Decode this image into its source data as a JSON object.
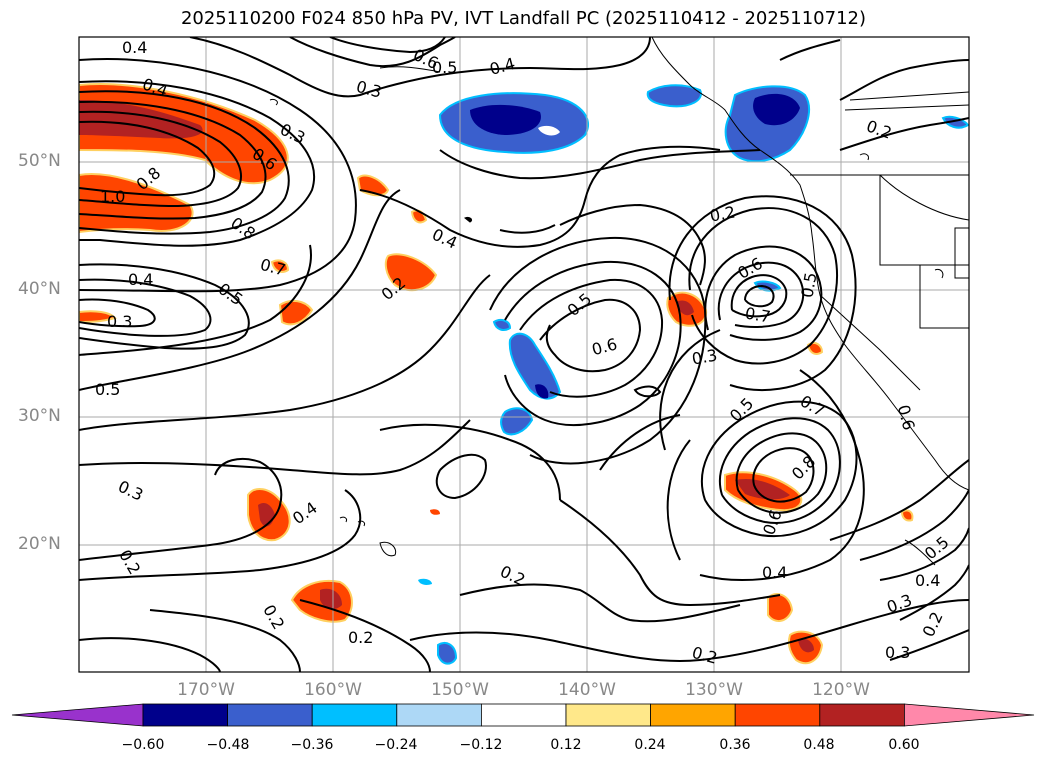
{
  "title": "2025110200 F024 850 hPa PV, IVT Landfall PC (2025110412 - 2025110712)",
  "map": {
    "lat_labels": [
      "50°N",
      "40°N",
      "30°N",
      "20°N"
    ],
    "lon_labels": [
      "170°W",
      "160°W",
      "150°W",
      "140°W",
      "130°W",
      "120°W"
    ]
  },
  "contour_labels": [
    {
      "text": "0.4"
    },
    {
      "text": "0.6"
    },
    {
      "text": "0.5"
    },
    {
      "text": "0.4"
    },
    {
      "text": "0.3"
    },
    {
      "text": "0.4"
    },
    {
      "text": "0.3"
    },
    {
      "text": "0.6"
    },
    {
      "text": "0.8"
    },
    {
      "text": "1.0"
    },
    {
      "text": "0.8"
    },
    {
      "text": "0.7"
    },
    {
      "text": "0.5"
    },
    {
      "text": "0.4"
    },
    {
      "text": "0.3"
    },
    {
      "text": "0.2"
    },
    {
      "text": "0.4"
    },
    {
      "text": "0.2"
    },
    {
      "text": "0.5"
    },
    {
      "text": "0.6"
    },
    {
      "text": "0.6"
    },
    {
      "text": "0.7"
    },
    {
      "text": "0.5"
    },
    {
      "text": "0.3"
    },
    {
      "text": "0.5"
    },
    {
      "text": "0.5"
    },
    {
      "text": "0.7"
    },
    {
      "text": "0.8"
    },
    {
      "text": "0.6"
    },
    {
      "text": "0.6"
    },
    {
      "text": "0.3"
    },
    {
      "text": "0.4"
    },
    {
      "text": "0.2"
    },
    {
      "text": "0.2"
    },
    {
      "text": "0.2"
    },
    {
      "text": "0.2"
    },
    {
      "text": "0.4"
    },
    {
      "text": "0.5"
    },
    {
      "text": "0.4"
    },
    {
      "text": "0.3"
    },
    {
      "text": "0.2"
    },
    {
      "text": "0.2"
    },
    {
      "text": "0.3"
    },
    {
      "text": "0.2"
    }
  ],
  "colorbar": {
    "ticks": [
      "−0.60",
      "−0.48",
      "−0.36",
      "−0.24",
      "−0.12",
      "0.12",
      "0.24",
      "0.36",
      "0.48",
      "0.60"
    ],
    "colors": {
      "under": "#9932cc",
      "bins": [
        "#00008b",
        "#3a5fcd",
        "#00bfff",
        "#add8f6",
        "#ffffff",
        "#ffe88a",
        "#ffa500",
        "#ff4500",
        "#b22222"
      ],
      "over": "#ff88aa"
    }
  }
}
